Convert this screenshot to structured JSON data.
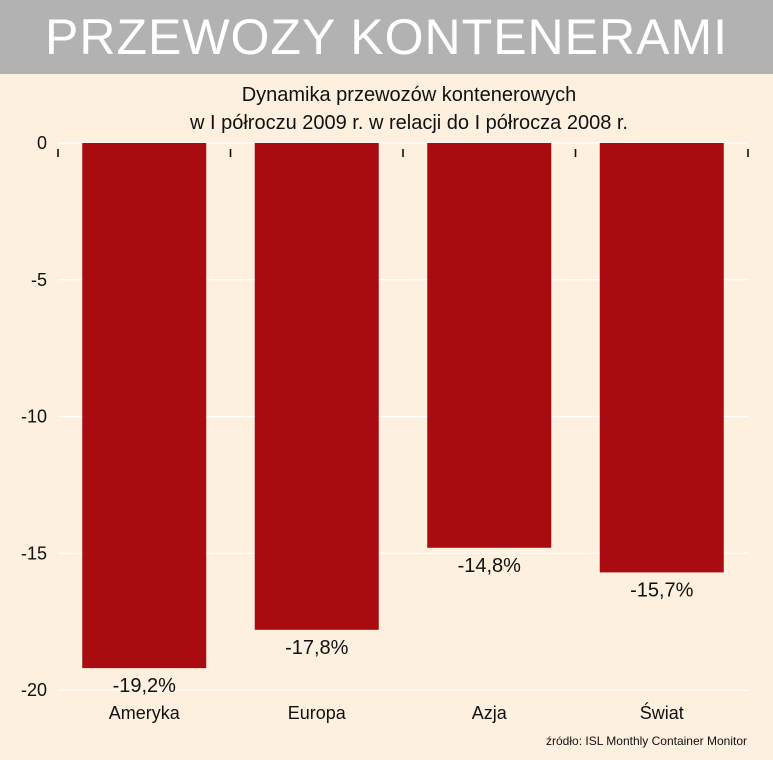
{
  "header": {
    "title": "PRZEWOZY KONTENERAMI"
  },
  "chart_data": {
    "type": "bar",
    "title_lines": [
      "Dynamika przewozów kontenerowych",
      "w I półroczu 2009 r. w relacji do I półrocza 2008 r."
    ],
    "categories": [
      "Ameryka",
      "Europa",
      "Azja",
      "Świat"
    ],
    "values": [
      -19.2,
      -17.8,
      -14.8,
      -15.7
    ],
    "data_labels": [
      "-19,2%",
      "-17,8%",
      "-14,8%",
      "-15,7%"
    ],
    "yticks": [
      0,
      -5,
      -10,
      -15,
      -20
    ],
    "ytick_labels": [
      "0",
      "-5",
      "-10",
      "-15",
      "-20"
    ],
    "ylim": [
      -20,
      0
    ],
    "grid": true,
    "bar_color": "#a80b10",
    "grid_color": "#ffffff",
    "xlabel": "",
    "ylabel": ""
  },
  "source": {
    "text": "źródło: ISL Monthly Container Monitor"
  }
}
